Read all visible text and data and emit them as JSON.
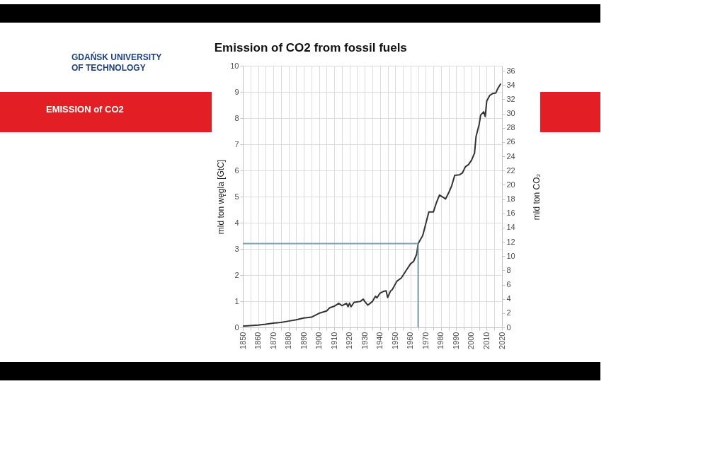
{
  "chart_data": {
    "type": "line",
    "title": "Emission of CO2 from fossil fuels",
    "ylabel": "mld ton węgla [GtC]",
    "y2label": "mld ton CO₂",
    "annotations": [
      "GDAŃSK UNIVERSITY OF TECHNOLOGY",
      "EMISSION of CO2"
    ],
    "x": [
      1850,
      1855,
      1860,
      1865,
      1870,
      1875,
      1880,
      1885,
      1890,
      1895,
      1900,
      1905,
      1907,
      1910,
      1913,
      1915,
      1918,
      1919,
      1920,
      1921,
      1923,
      1927,
      1929,
      1930,
      1932,
      1935,
      1937,
      1938,
      1940,
      1942,
      1944,
      1945,
      1947,
      1948,
      1951,
      1954,
      1957,
      1960,
      1962,
      1964,
      1965,
      1968,
      1970,
      1972,
      1975,
      1977,
      1979,
      1982,
      1983,
      1985,
      1987,
      1989,
      1992,
      1994,
      1996,
      1998,
      2000,
      2002,
      2003,
      2005,
      2006,
      2008,
      2009,
      2010,
      2012,
      2014,
      2016,
      2017,
      2019
    ],
    "series": [
      {
        "color": "#333333",
        "values": [
          0.05,
          0.07,
          0.09,
          0.12,
          0.16,
          0.19,
          0.24,
          0.29,
          0.36,
          0.39,
          0.54,
          0.63,
          0.75,
          0.81,
          0.92,
          0.83,
          0.92,
          0.79,
          0.93,
          0.79,
          0.96,
          0.99,
          1.08,
          0.99,
          0.85,
          0.99,
          1.19,
          1.13,
          1.31,
          1.37,
          1.4,
          1.14,
          1.4,
          1.44,
          1.76,
          1.89,
          2.16,
          2.43,
          2.52,
          2.79,
          3.2,
          3.51,
          3.96,
          4.41,
          4.41,
          4.77,
          5.06,
          4.95,
          4.91,
          5.14,
          5.41,
          5.81,
          5.83,
          5.9,
          6.14,
          6.22,
          6.39,
          6.66,
          7.3,
          7.75,
          8.11,
          8.24,
          8.06,
          8.65,
          8.87,
          8.94,
          8.96,
          9.1,
          9.3
        ]
      }
    ],
    "xlim": [
      1850,
      2020
    ],
    "xticks": [
      1850,
      {
        "value": 1855,
        "label": null
      },
      1860,
      {
        "value": 1865,
        "label": null
      },
      1870,
      {
        "value": 1875,
        "label": null
      },
      1880,
      {
        "value": 1885,
        "label": null
      },
      1890,
      {
        "value": 1895,
        "label": null
      },
      1900,
      {
        "value": 1905,
        "label": null
      },
      1910,
      {
        "value": 1915,
        "label": null
      },
      1920,
      {
        "value": 1925,
        "label": null
      },
      1930,
      {
        "value": 1935,
        "label": null
      },
      1940,
      {
        "value": 1945,
        "label": null
      },
      1950,
      {
        "value": 1955,
        "label": null
      },
      1960,
      {
        "value": 1965,
        "label": null
      },
      1970,
      {
        "value": 1975,
        "label": null
      },
      1980,
      {
        "value": 1985,
        "label": null
      },
      1990,
      {
        "value": 1995,
        "label": null
      },
      2000,
      {
        "value": 2005,
        "label": null
      },
      2010,
      {
        "value": 2015,
        "label": null
      },
      2020
    ],
    "ylim": [
      0,
      10
    ],
    "yticks": [
      0,
      1,
      2,
      3,
      4,
      5,
      6,
      7,
      8,
      9,
      10
    ],
    "y2lim": [
      0,
      36.7
    ],
    "y2ticks": [
      0,
      2,
      4,
      6,
      8,
      10,
      12,
      14,
      16,
      18,
      20,
      22,
      24,
      26,
      28,
      30,
      32,
      34,
      36
    ],
    "ref_lines": [
      {
        "axis": "y",
        "value": 3.2,
        "color": "#7f9dab"
      },
      {
        "axis": "x",
        "value": 1965,
        "color": "#7f9dab"
      }
    ],
    "grid": true,
    "line_style": "solid"
  }
}
